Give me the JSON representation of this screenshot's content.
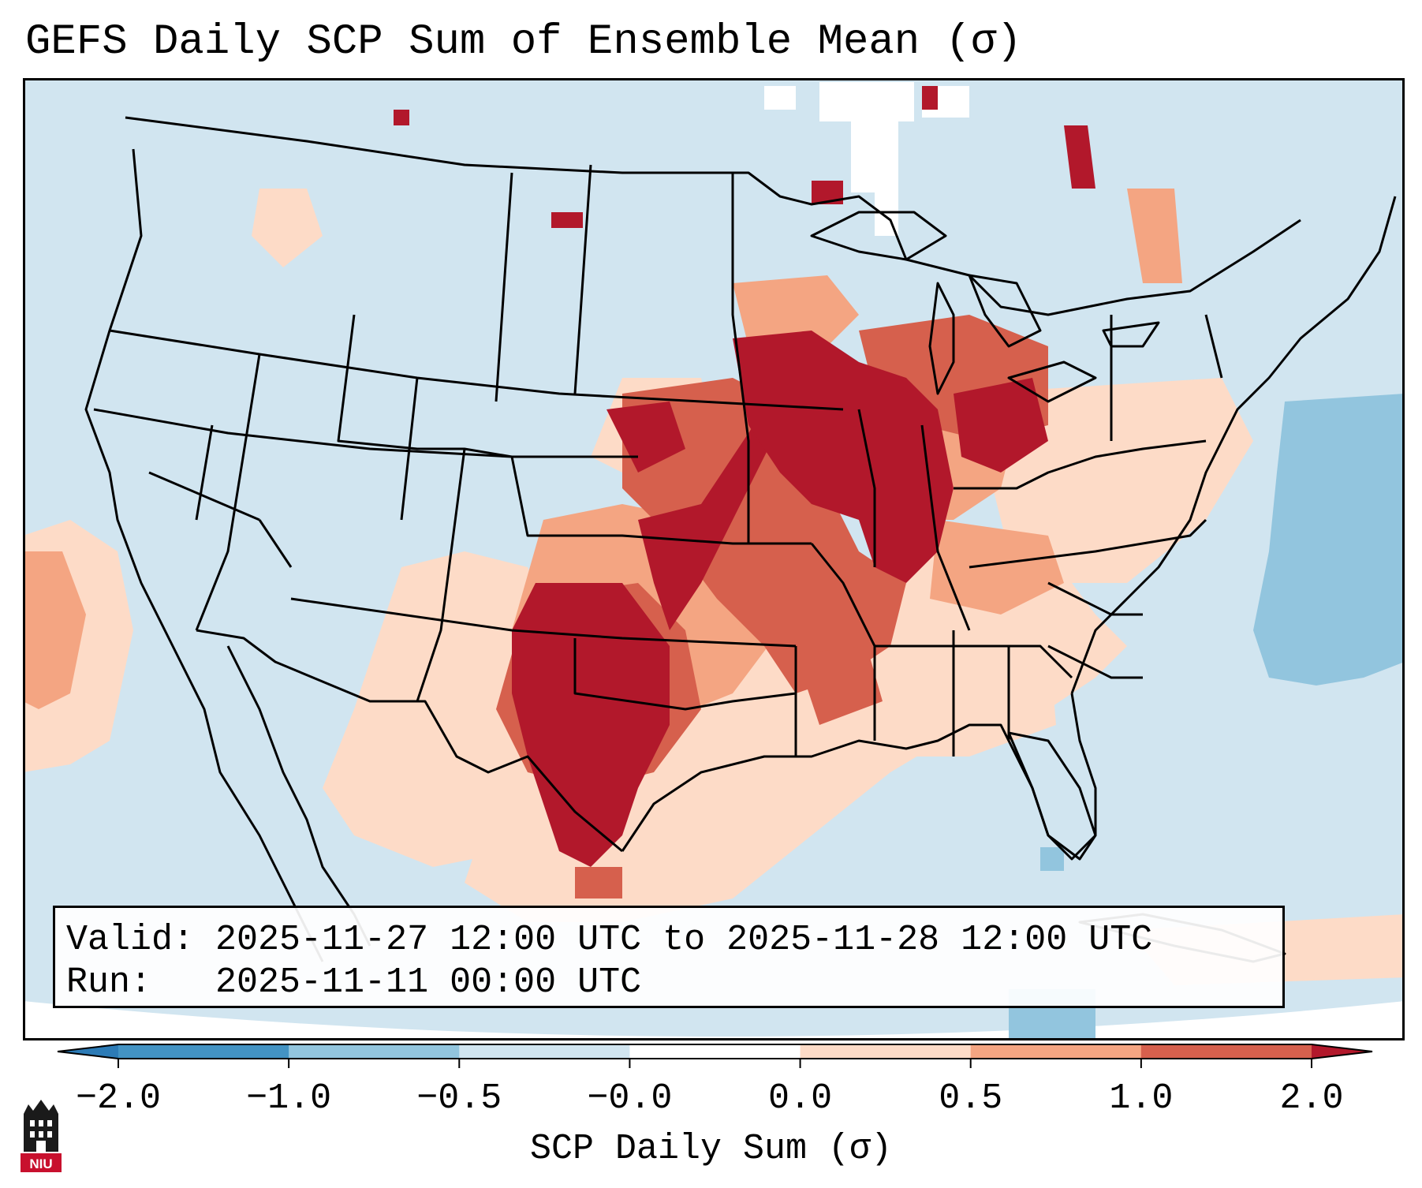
{
  "title": "GEFS Daily SCP Sum of Ensemble Mean (σ)",
  "valid_text": "Valid: 2025-11-27 12:00 UTC to 2025-11-28 12:00 UTC",
  "run_text": "Run:   2025-11-11 00:00 UTC",
  "colorbar": {
    "label": "SCP Daily Sum (σ)",
    "ticks": [
      "−2.0",
      "−1.0",
      "−0.5",
      "−0.0",
      "0.0",
      "0.5",
      "1.0",
      "2.0"
    ],
    "bin_colors": [
      "#2c7bb6",
      "#4393c3",
      "#92c5de",
      "#d1e5f0",
      "#ffffff",
      "#fddbc7",
      "#f4a582",
      "#d6604d",
      "#b2182b"
    ]
  },
  "logo_text": "NIU",
  "map_features": [
    "state-borders",
    "coastlines",
    "canada-provinces",
    "mexico-border"
  ],
  "anomaly_regions": [
    {
      "name": "southern-plains-core",
      "level": "above 2.0"
    },
    {
      "name": "midwest-core",
      "level": "above 2.0"
    },
    {
      "name": "mississippi-valley",
      "level": "1.0 to 2.0"
    },
    {
      "name": "southeast-gulf",
      "level": "0.0 to 0.5"
    },
    {
      "name": "western-atlantic",
      "level": "-1.0 to -0.5"
    }
  ]
}
